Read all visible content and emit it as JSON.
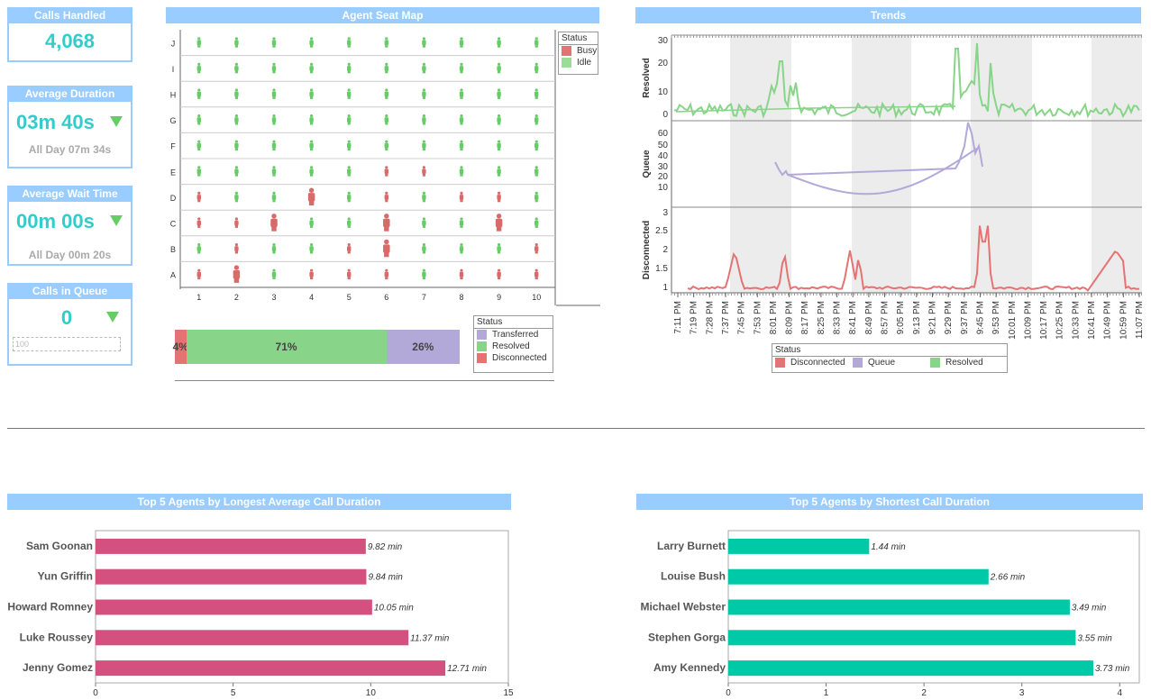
{
  "kpis": {
    "calls_handled": {
      "title": "Calls Handled",
      "value": "4,068"
    },
    "avg_duration": {
      "title": "Average Duration",
      "value": "03m 40s",
      "sub": "All Day 07m 34s"
    },
    "avg_wait": {
      "title": "Average Wait Time",
      "value": "00m 00s",
      "sub": "All Day 00m 20s"
    },
    "queue": {
      "title": "Calls in Queue",
      "value": "0",
      "input_value": "100"
    }
  },
  "seat_map": {
    "title": "Agent Seat Map",
    "rows": [
      "J",
      "I",
      "H",
      "G",
      "F",
      "E",
      "D",
      "C",
      "B",
      "A"
    ],
    "cols": [
      "1",
      "2",
      "3",
      "4",
      "5",
      "6",
      "7",
      "8",
      "9",
      "10"
    ],
    "busy": {
      "E": [
        6,
        7
      ],
      "D": [
        1,
        4,
        6,
        8,
        9
      ],
      "C": [
        1,
        2,
        3,
        6,
        9
      ],
      "B": [
        2,
        5,
        6,
        10
      ],
      "A": [
        1,
        2,
        4,
        5,
        6,
        8,
        9,
        10
      ]
    },
    "large": [
      "D4",
      "C3",
      "C6",
      "C9",
      "B6",
      "A2"
    ],
    "legend_title": "Status",
    "legend": [
      {
        "label": "Busy",
        "color": "#e57373"
      },
      {
        "label": "Idle",
        "color": "#99dd99"
      }
    ]
  },
  "status_bar": {
    "segments": [
      {
        "label": "4%",
        "value": 4,
        "color": "#e57373"
      },
      {
        "label": "71%",
        "value": 71,
        "color": "#88d488"
      },
      {
        "label": "26%",
        "value": 26,
        "color": "#b3a9d8"
      }
    ],
    "legend_title": "Status",
    "legend": [
      {
        "label": "Transferred",
        "color": "#b3a9d8"
      },
      {
        "label": "Resolved",
        "color": "#88d488"
      },
      {
        "label": "Disconnected",
        "color": "#e57373"
      }
    ]
  },
  "trends": {
    "title": "Trends",
    "panels": [
      {
        "ylabel": "Resolved",
        "ticks": [
          "30",
          "20",
          "10",
          "0"
        ]
      },
      {
        "ylabel": "Queue",
        "ticks": [
          "60",
          "50",
          "40",
          "30",
          "20",
          "10"
        ]
      },
      {
        "ylabel": "Disconnected",
        "ticks": [
          "3",
          "2.5",
          "2",
          "1.5",
          "1"
        ]
      }
    ],
    "x_ticks": [
      "7:11 PM",
      "7:19 PM",
      "7:28 PM",
      "7:37 PM",
      "7:45 PM",
      "7:53 PM",
      "8:01 PM",
      "8:09 PM",
      "8:17 PM",
      "8:25 PM",
      "8:33 PM",
      "8:41 PM",
      "8:49 PM",
      "8:57 PM",
      "9:05 PM",
      "9:13 PM",
      "9:21 PM",
      "9:29 PM",
      "9:37 PM",
      "9:45 PM",
      "9:53 PM",
      "10:01 PM",
      "10:09 PM",
      "10:17 PM",
      "10:25 PM",
      "10:33 PM",
      "10:41 PM",
      "10:49 PM",
      "10:59 PM",
      "11:07 PM"
    ],
    "legend_title": "Status",
    "legend": [
      {
        "label": "Disconnected",
        "color": "#e57373"
      },
      {
        "label": "Queue",
        "color": "#b3a9d8"
      },
      {
        "label": "Resolved",
        "color": "#88d488"
      }
    ],
    "colors": {
      "resolved": "#88d488",
      "queue": "#b3a9d8",
      "disconnected": "#e57373"
    }
  },
  "chart_data": [
    {
      "type": "bar",
      "title": "Top 5 Agents by Longest Average Call Duration",
      "categories": [
        "Sam Goonan",
        "Yun Griffin",
        "Howard Romney",
        "Luke Roussey",
        "Jenny Gomez"
      ],
      "values": [
        9.82,
        9.84,
        10.05,
        11.37,
        12.71
      ],
      "value_labels": [
        "9.82 min",
        "9.84 min",
        "10.05 min",
        "11.37 min",
        "12.71 min"
      ],
      "x_ticks": [
        "0",
        "5",
        "10",
        "15"
      ],
      "xlim": [
        0,
        15
      ],
      "color": "#d4507e"
    },
    {
      "type": "bar",
      "title": "Top 5 Agents by Shortest Call Duration",
      "categories": [
        "Larry Burnett",
        "Louise Bush",
        "Michael Webster",
        "Stephen Gorga",
        "Amy Kennedy"
      ],
      "values": [
        1.44,
        2.66,
        3.49,
        3.55,
        3.73
      ],
      "value_labels": [
        "1.44 min",
        "2.66 min",
        "3.49 min",
        "3.55 min",
        "3.73 min"
      ],
      "x_ticks": [
        "0",
        "1",
        "2",
        "3",
        "4"
      ],
      "xlim": [
        0,
        4.2
      ],
      "color": "#00c9a7"
    }
  ]
}
